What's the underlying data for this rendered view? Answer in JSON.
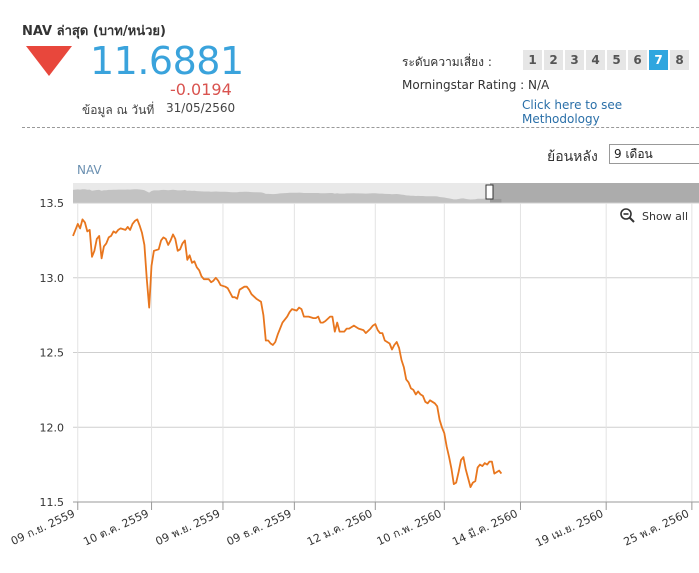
{
  "header": {
    "nav_label": "NAV ล่าสุด (บาท/หน่วย)",
    "nav_value": "11.6881",
    "nav_change": "-0.0194",
    "date_label": "ข้อมูล ณ วันที่",
    "date_value": "31/05/2560",
    "trend_icon": "down-triangle-icon",
    "trend_color": "#e8473c"
  },
  "risk": {
    "label": "ระดับความเสี่ยง :",
    "levels": [
      "1",
      "2",
      "3",
      "4",
      "5",
      "6",
      "7",
      "8"
    ],
    "active": "7",
    "accent": "#2fa6df"
  },
  "morningstar": {
    "label": "Morningstar Rating : N/A"
  },
  "methodology_link": "Click here to see Methodology",
  "controls": {
    "period_label": "ย้อนหลัง",
    "period_value": "9 เดือน",
    "show_all": "Show all"
  },
  "chart_data": {
    "type": "line",
    "series_label": "NAV",
    "line_color": "#e8761e",
    "grid": true,
    "ylim": [
      11.5,
      13.5
    ],
    "y_ticks": [
      "13.5",
      "13.0",
      "12.5",
      "12.0",
      "11.5"
    ],
    "x_ticks": [
      "09 ก.ย. 2559",
      "10 ต.ค. 2559",
      "09 พ.ย. 2559",
      "09 ธ.ค. 2559",
      "12 ม.ค. 2560",
      "10 ก.พ. 2560",
      "14 มี.ค. 2560",
      "19 เม.ย. 2560",
      "25 พ.ค. 2560"
    ],
    "x_range_days": [
      -2,
      261
    ],
    "x_tick_days": [
      0,
      31,
      61,
      91,
      125,
      154,
      186,
      222,
      258
    ],
    "points": [
      [
        -2,
        13.28
      ],
      [
        0,
        13.36
      ],
      [
        1,
        13.33
      ],
      [
        2,
        13.39
      ],
      [
        3,
        13.37
      ],
      [
        4,
        13.31
      ],
      [
        5,
        13.32
      ],
      [
        6,
        13.14
      ],
      [
        7,
        13.18
      ],
      [
        8,
        13.26
      ],
      [
        9,
        13.28
      ],
      [
        10,
        13.13
      ],
      [
        11,
        13.21
      ],
      [
        12,
        13.23
      ],
      [
        13,
        13.27
      ],
      [
        14,
        13.28
      ],
      [
        15,
        13.31
      ],
      [
        16,
        13.3
      ],
      [
        17,
        13.32
      ],
      [
        18,
        13.33
      ],
      [
        20,
        13.32
      ],
      [
        21,
        13.34
      ],
      [
        22,
        13.32
      ],
      [
        23,
        13.36
      ],
      [
        24,
        13.38
      ],
      [
        25,
        13.39
      ],
      [
        26,
        13.35
      ],
      [
        27,
        13.3
      ],
      [
        28,
        13.22
      ],
      [
        29,
        12.99
      ],
      [
        30,
        12.8
      ],
      [
        31,
        13.08
      ],
      [
        32,
        13.18
      ],
      [
        34,
        13.19
      ],
      [
        35,
        13.25
      ],
      [
        36,
        13.27
      ],
      [
        37,
        13.26
      ],
      [
        38,
        13.22
      ],
      [
        39,
        13.25
      ],
      [
        40,
        13.29
      ],
      [
        41,
        13.26
      ],
      [
        42,
        13.18
      ],
      [
        43,
        13.19
      ],
      [
        44,
        13.23
      ],
      [
        45,
        13.25
      ],
      [
        46,
        13.12
      ],
      [
        47,
        13.15
      ],
      [
        48,
        13.1
      ],
      [
        49,
        13.11
      ],
      [
        50,
        13.07
      ],
      [
        51,
        13.05
      ],
      [
        52,
        13.01
      ],
      [
        53,
        12.99
      ],
      [
        55,
        12.99
      ],
      [
        56,
        12.97
      ],
      [
        57,
        12.98
      ],
      [
        58,
        13.0
      ],
      [
        59,
        12.98
      ],
      [
        60,
        12.95
      ],
      [
        62,
        12.94
      ],
      [
        63,
        12.93
      ],
      [
        64,
        12.9
      ],
      [
        65,
        12.87
      ],
      [
        66,
        12.87
      ],
      [
        67,
        12.86
      ],
      [
        68,
        12.92
      ],
      [
        69,
        12.93
      ],
      [
        70,
        12.94
      ],
      [
        71,
        12.94
      ],
      [
        72,
        12.92
      ],
      [
        73,
        12.89
      ],
      [
        75,
        12.86
      ],
      [
        77,
        12.84
      ],
      [
        78,
        12.75
      ],
      [
        79,
        12.58
      ],
      [
        80,
        12.58
      ],
      [
        81,
        12.56
      ],
      [
        82,
        12.55
      ],
      [
        83,
        12.57
      ],
      [
        84,
        12.62
      ],
      [
        85,
        12.66
      ],
      [
        86,
        12.7
      ],
      [
        88,
        12.74
      ],
      [
        89,
        12.77
      ],
      [
        90,
        12.79
      ],
      [
        92,
        12.78
      ],
      [
        93,
        12.8
      ],
      [
        94,
        12.79
      ],
      [
        95,
        12.74
      ],
      [
        97,
        12.74
      ],
      [
        99,
        12.73
      ],
      [
        100,
        12.73
      ],
      [
        101,
        12.74
      ],
      [
        102,
        12.7
      ],
      [
        103,
        12.7
      ],
      [
        104,
        12.71
      ],
      [
        106,
        12.74
      ],
      [
        107,
        12.74
      ],
      [
        108,
        12.64
      ],
      [
        109,
        12.7
      ],
      [
        110,
        12.64
      ],
      [
        112,
        12.64
      ],
      [
        113,
        12.66
      ],
      [
        114,
        12.66
      ],
      [
        116,
        12.68
      ],
      [
        117,
        12.67
      ],
      [
        118,
        12.66
      ],
      [
        120,
        12.65
      ],
      [
        121,
        12.63
      ],
      [
        123,
        12.66
      ],
      [
        124,
        12.68
      ],
      [
        125,
        12.69
      ],
      [
        126,
        12.65
      ],
      [
        127,
        12.63
      ],
      [
        128,
        12.63
      ],
      [
        129,
        12.58
      ],
      [
        131,
        12.56
      ],
      [
        132,
        12.52
      ],
      [
        133,
        12.55
      ],
      [
        134,
        12.57
      ],
      [
        135,
        12.53
      ],
      [
        136,
        12.45
      ],
      [
        137,
        12.4
      ],
      [
        138,
        12.32
      ],
      [
        139,
        12.3
      ],
      [
        140,
        12.26
      ],
      [
        141,
        12.25
      ],
      [
        142,
        12.22
      ],
      [
        143,
        12.24
      ],
      [
        144,
        12.22
      ],
      [
        145,
        12.21
      ],
      [
        146,
        12.17
      ],
      [
        147,
        12.16
      ],
      [
        148,
        12.18
      ],
      [
        149,
        12.17
      ],
      [
        150,
        12.16
      ],
      [
        151,
        12.14
      ],
      [
        152,
        12.05
      ],
      [
        153,
        12.0
      ],
      [
        154,
        11.96
      ],
      [
        155,
        11.87
      ],
      [
        156,
        11.8
      ],
      [
        157,
        11.72
      ],
      [
        158,
        11.62
      ],
      [
        159,
        11.63
      ],
      [
        160,
        11.7
      ],
      [
        161,
        11.78
      ],
      [
        162,
        11.8
      ],
      [
        163,
        11.72
      ],
      [
        164,
        11.66
      ],
      [
        165,
        11.6
      ],
      [
        166,
        11.63
      ],
      [
        167,
        11.64
      ],
      [
        168,
        11.73
      ],
      [
        169,
        11.75
      ],
      [
        170,
        11.74
      ],
      [
        171,
        11.76
      ],
      [
        172,
        11.75
      ],
      [
        173,
        11.77
      ],
      [
        174,
        11.77
      ],
      [
        175,
        11.69
      ],
      [
        176,
        11.7
      ],
      [
        177,
        11.71
      ],
      [
        178,
        11.69
      ]
    ],
    "navigator_color": "#9a9a9a"
  }
}
